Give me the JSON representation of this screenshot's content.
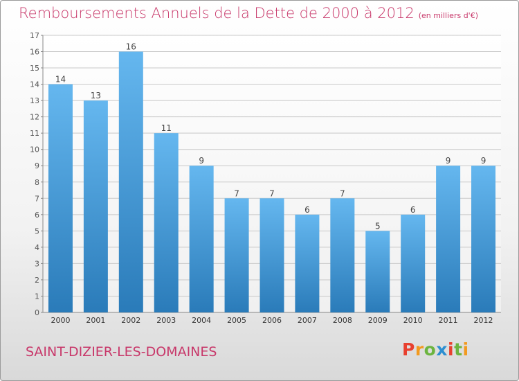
{
  "title": "Remboursements Annuels de la Dette de 2000 à 2012",
  "unit": "(en milliers d'€)",
  "commune": "SAINT-DIZIER-LES-DOMAINES",
  "brand": "Proxiti",
  "brand_colors": [
    "#e8402f",
    "#f29a1f",
    "#6cb43f",
    "#2d8fd1",
    "#e8402f",
    "#6cb43f",
    "#f29a1f"
  ],
  "colors": {
    "bar_top": "#65b7ef",
    "bar_bottom": "#2a7bb9",
    "grid": "#c8c8c8",
    "text": "#c8386a"
  },
  "chart_data": {
    "type": "bar",
    "categories": [
      "2000",
      "2001",
      "2002",
      "2003",
      "2004",
      "2005",
      "2006",
      "2007",
      "2008",
      "2009",
      "2010",
      "2011",
      "2012"
    ],
    "values": [
      14,
      13,
      16,
      11,
      9,
      7,
      7,
      6,
      7,
      5,
      6,
      9,
      9
    ],
    "ylim": [
      0,
      17
    ],
    "yticks": [
      0,
      1,
      2,
      3,
      4,
      5,
      6,
      7,
      8,
      9,
      10,
      11,
      12,
      13,
      14,
      15,
      16,
      17
    ],
    "grid": true
  }
}
